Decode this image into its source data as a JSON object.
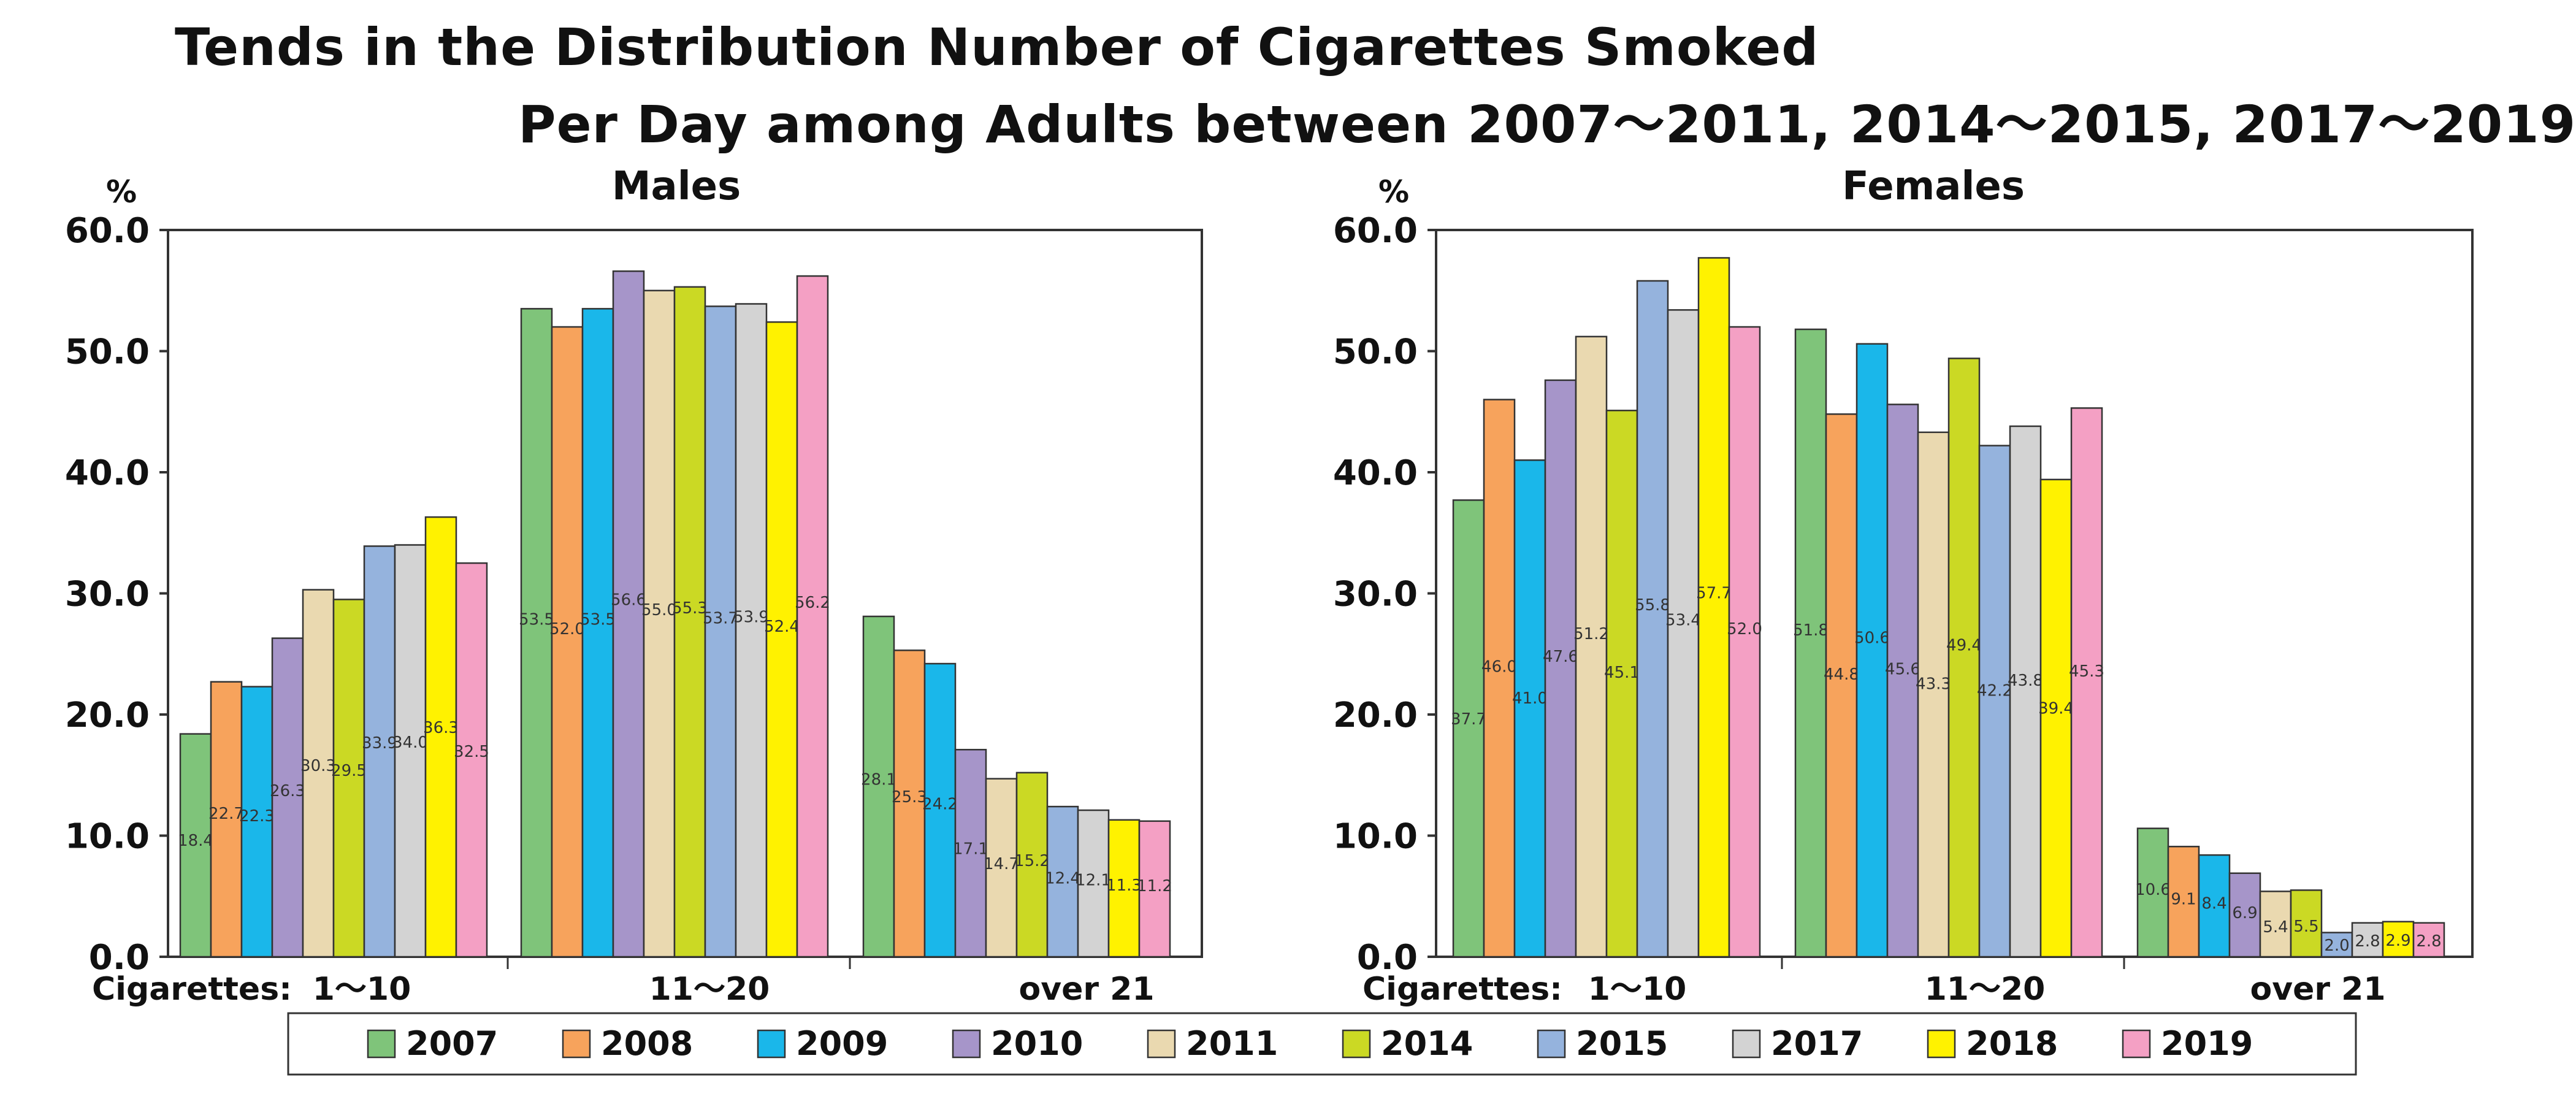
{
  "title_line1": "Tends in the Distribution Number of Cigarettes Smoked",
  "title_line2": "Per Day among Adults between 2007～2011, 2014～2015, 2017～2019",
  "chart_data": [
    {
      "type": "bar",
      "title": "Males",
      "ylabel": "%",
      "xlabel_prefix": "Cigarettes:",
      "ylim": [
        0,
        60
      ],
      "yticks": [
        "0.0",
        "10.0",
        "20.0",
        "30.0",
        "40.0",
        "50.0",
        "60.0"
      ],
      "categories": [
        "1～10",
        "11～20",
        "over 21"
      ],
      "series": [
        {
          "name": "2007",
          "values": [
            18.4,
            53.5,
            28.1
          ]
        },
        {
          "name": "2008",
          "values": [
            22.7,
            52.0,
            25.3
          ]
        },
        {
          "name": "2009",
          "values": [
            22.3,
            53.5,
            24.2
          ]
        },
        {
          "name": "2010",
          "values": [
            26.3,
            56.6,
            17.1
          ]
        },
        {
          "name": "2011",
          "values": [
            30.3,
            55.0,
            14.7
          ]
        },
        {
          "name": "2014",
          "values": [
            29.5,
            55.3,
            15.2
          ]
        },
        {
          "name": "2015",
          "values": [
            33.9,
            53.7,
            12.4
          ]
        },
        {
          "name": "2017",
          "values": [
            34.0,
            53.9,
            12.1
          ]
        },
        {
          "name": "2018",
          "values": [
            36.3,
            52.4,
            11.3
          ]
        },
        {
          "name": "2019",
          "values": [
            32.5,
            56.2,
            11.2
          ]
        }
      ],
      "value_labels": [
        [
          "18.4",
          "53.5",
          "28.1"
        ],
        [
          "22.7",
          "52.0",
          "25.3"
        ],
        [
          "22.3",
          "53.5",
          "24.2"
        ],
        [
          "26.3",
          "56.6",
          "17.1"
        ],
        [
          "30.3",
          "55.0",
          "14.7"
        ],
        [
          "29.5",
          "55.3",
          "15.2"
        ],
        [
          "33.9",
          "53.7",
          "12.4"
        ],
        [
          "34.0",
          "53.9",
          "12.1"
        ],
        [
          "36.3",
          "52.4",
          "11.3"
        ],
        [
          "32.5",
          "56.2",
          "11.2"
        ]
      ]
    },
    {
      "type": "bar",
      "title": "Females",
      "ylabel": "%",
      "xlabel_prefix": "Cigarettes:",
      "ylim": [
        0,
        60
      ],
      "yticks": [
        "0.0",
        "10.0",
        "20.0",
        "30.0",
        "40.0",
        "50.0",
        "60.0"
      ],
      "categories": [
        "1～10",
        "11～20",
        "over 21"
      ],
      "series": [
        {
          "name": "2007",
          "values": [
            37.7,
            51.8,
            10.6
          ]
        },
        {
          "name": "2008",
          "values": [
            46.0,
            44.8,
            9.1
          ]
        },
        {
          "name": "2009",
          "values": [
            41.0,
            50.6,
            8.4
          ]
        },
        {
          "name": "2010",
          "values": [
            47.6,
            45.6,
            6.9
          ]
        },
        {
          "name": "2011",
          "values": [
            51.2,
            43.3,
            5.4
          ]
        },
        {
          "name": "2014",
          "values": [
            45.1,
            49.4,
            5.5
          ]
        },
        {
          "name": "2015",
          "values": [
            55.8,
            42.2,
            2.0
          ]
        },
        {
          "name": "2017",
          "values": [
            53.4,
            43.8,
            2.8
          ]
        },
        {
          "name": "2018",
          "values": [
            57.7,
            39.4,
            2.9
          ]
        },
        {
          "name": "2019",
          "values": [
            52.0,
            45.3,
            2.8
          ]
        }
      ],
      "value_labels": [
        [
          "37.7",
          "51.8",
          "10.6"
        ],
        [
          "46.0",
          "44.8",
          "9.1"
        ],
        [
          "41.0",
          "50.6",
          "8.4"
        ],
        [
          "47.6",
          "45.6",
          "6.9"
        ],
        [
          "51.2",
          "43.3",
          "5.4"
        ],
        [
          "45.1",
          "49.4",
          "5.5"
        ],
        [
          "55.8",
          "42.2",
          "2.0"
        ],
        [
          "53.4",
          "43.8",
          "2.8"
        ],
        [
          "57.7",
          "39.4",
          "2.9"
        ],
        [
          "52.0",
          "45.3",
          "2.8"
        ]
      ]
    }
  ],
  "legend": {
    "placement": "bottom",
    "items": [
      "2007",
      "2008",
      "2009",
      "2010",
      "2011",
      "2014",
      "2015",
      "2017",
      "2018",
      "2019"
    ]
  },
  "colors": {
    "2007": "#7fc47a",
    "2008": "#f7a35c",
    "2009": "#1ab7ea",
    "2010": "#a695c9",
    "2011": "#ead9b0",
    "2014": "#cbd924",
    "2015": "#95b3dd",
    "2017": "#d3d3d3",
    "2018": "#fff200",
    "2019": "#f4a0c4"
  }
}
